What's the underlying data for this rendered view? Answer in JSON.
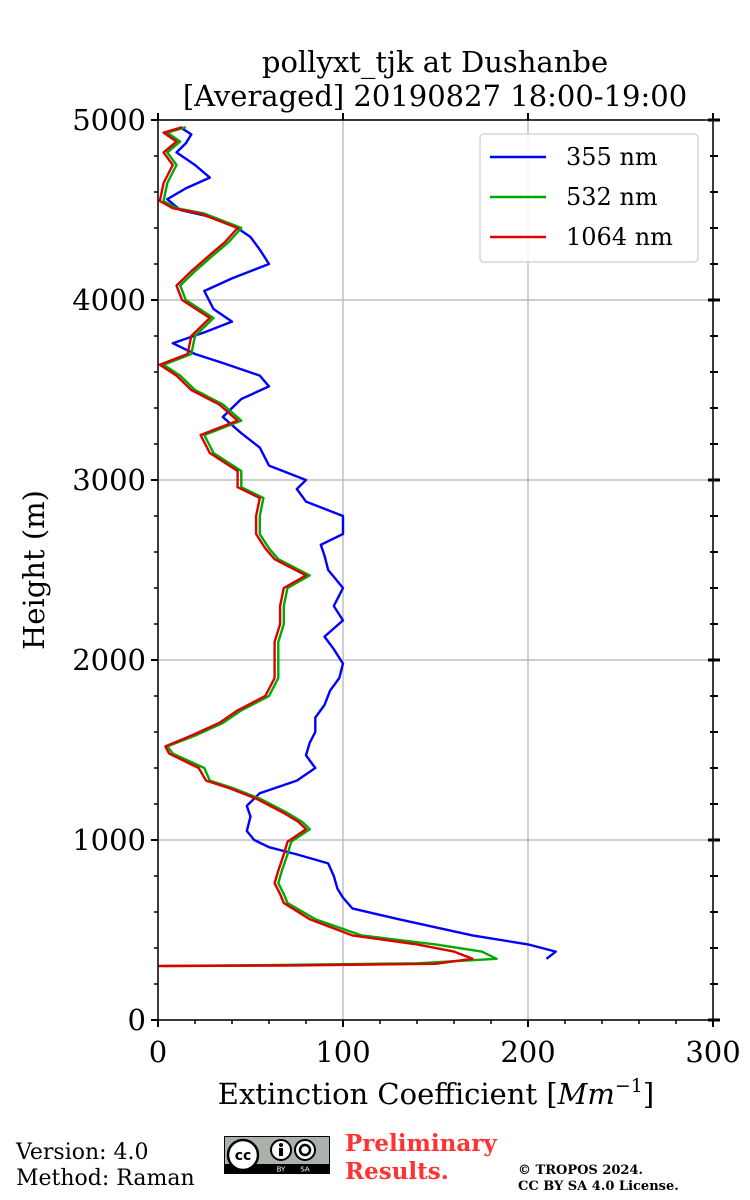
{
  "chart_data": {
    "type": "line",
    "title": [
      "pollyxt_tjk at Dushanbe",
      "[Averaged] 20190827 18:00-19:00"
    ],
    "xlabel": "Extinction Coefficient [",
    "xlabel_unit": "Mm",
    "xlabel_exp": "−1",
    "xlabel_close": "]",
    "ylabel": "Height (m)",
    "xlim": [
      0,
      300
    ],
    "ylim": [
      0,
      5000
    ],
    "xticks": [
      0,
      100,
      200,
      300
    ],
    "yticks": [
      0,
      1000,
      2000,
      3000,
      4000,
      5000
    ],
    "grid": true,
    "legend_position": "top-right",
    "series": [
      {
        "name": "355 nm",
        "color": "#0000ff",
        "points": [
          [
            210,
            340
          ],
          [
            215,
            380
          ],
          [
            200,
            420
          ],
          [
            170,
            470
          ],
          [
            130,
            560
          ],
          [
            105,
            620
          ],
          [
            100,
            680
          ],
          [
            97,
            730
          ],
          [
            95,
            800
          ],
          [
            92,
            870
          ],
          [
            75,
            920
          ],
          [
            60,
            960
          ],
          [
            52,
            1000
          ],
          [
            48,
            1050
          ],
          [
            50,
            1130
          ],
          [
            48,
            1190
          ],
          [
            55,
            1260
          ],
          [
            75,
            1330
          ],
          [
            85,
            1400
          ],
          [
            80,
            1470
          ],
          [
            82,
            1540
          ],
          [
            85,
            1600
          ],
          [
            85,
            1680
          ],
          [
            90,
            1750
          ],
          [
            93,
            1830
          ],
          [
            98,
            1900
          ],
          [
            100,
            1980
          ],
          [
            95,
            2060
          ],
          [
            90,
            2130
          ],
          [
            100,
            2220
          ],
          [
            95,
            2300
          ],
          [
            100,
            2400
          ],
          [
            92,
            2500
          ],
          [
            90,
            2580
          ],
          [
            88,
            2640
          ],
          [
            100,
            2700
          ],
          [
            100,
            2800
          ],
          [
            80,
            2880
          ],
          [
            75,
            2950
          ],
          [
            80,
            3000
          ],
          [
            60,
            3080
          ],
          [
            55,
            3180
          ],
          [
            45,
            3260
          ],
          [
            35,
            3350
          ],
          [
            45,
            3450
          ],
          [
            60,
            3520
          ],
          [
            55,
            3580
          ],
          [
            35,
            3650
          ],
          [
            20,
            3700
          ],
          [
            8,
            3760
          ],
          [
            25,
            3820
          ],
          [
            40,
            3880
          ],
          [
            30,
            3950
          ],
          [
            25,
            4050
          ],
          [
            40,
            4120
          ],
          [
            60,
            4200
          ],
          [
            55,
            4280
          ],
          [
            50,
            4350
          ],
          [
            40,
            4420
          ],
          [
            25,
            4470
          ],
          [
            12,
            4500
          ],
          [
            5,
            4560
          ],
          [
            15,
            4620
          ],
          [
            28,
            4680
          ],
          [
            20,
            4750
          ],
          [
            10,
            4820
          ],
          [
            15,
            4870
          ],
          [
            18,
            4920
          ],
          [
            12,
            4960
          ]
        ]
      },
      {
        "name": "532 nm",
        "color": "#00aa00",
        "points": [
          [
            3,
            300
          ],
          [
            60,
            305
          ],
          [
            140,
            315
          ],
          [
            183,
            340
          ],
          [
            175,
            380
          ],
          [
            150,
            420
          ],
          [
            110,
            470
          ],
          [
            85,
            560
          ],
          [
            70,
            650
          ],
          [
            68,
            700
          ],
          [
            65,
            760
          ],
          [
            67,
            830
          ],
          [
            70,
            920
          ],
          [
            72,
            990
          ],
          [
            82,
            1060
          ],
          [
            78,
            1100
          ],
          [
            70,
            1150
          ],
          [
            55,
            1230
          ],
          [
            40,
            1290
          ],
          [
            28,
            1330
          ],
          [
            25,
            1400
          ],
          [
            8,
            1480
          ],
          [
            5,
            1520
          ],
          [
            20,
            1580
          ],
          [
            35,
            1650
          ],
          [
            45,
            1720
          ],
          [
            60,
            1800
          ],
          [
            65,
            1900
          ],
          [
            65,
            2000
          ],
          [
            65,
            2100
          ],
          [
            68,
            2200
          ],
          [
            68,
            2300
          ],
          [
            70,
            2400
          ],
          [
            82,
            2470
          ],
          [
            65,
            2560
          ],
          [
            60,
            2620
          ],
          [
            55,
            2700
          ],
          [
            55,
            2800
          ],
          [
            57,
            2900
          ],
          [
            45,
            2960
          ],
          [
            45,
            3050
          ],
          [
            30,
            3150
          ],
          [
            25,
            3250
          ],
          [
            45,
            3330
          ],
          [
            35,
            3420
          ],
          [
            20,
            3500
          ],
          [
            12,
            3580
          ],
          [
            3,
            3640
          ],
          [
            18,
            3700
          ],
          [
            20,
            3800
          ],
          [
            30,
            3900
          ],
          [
            15,
            4000
          ],
          [
            12,
            4080
          ],
          [
            20,
            4160
          ],
          [
            30,
            4250
          ],
          [
            38,
            4320
          ],
          [
            45,
            4400
          ],
          [
            25,
            4480
          ],
          [
            10,
            4510
          ],
          [
            3,
            4550
          ],
          [
            5,
            4650
          ],
          [
            10,
            4750
          ],
          [
            5,
            4820
          ],
          [
            12,
            4880
          ],
          [
            5,
            4930
          ],
          [
            15,
            4960
          ]
        ]
      },
      {
        "name": "1064 nm",
        "color": "#dd0000",
        "points": [
          [
            0,
            300
          ],
          [
            70,
            303
          ],
          [
            150,
            312
          ],
          [
            170,
            340
          ],
          [
            160,
            380
          ],
          [
            140,
            420
          ],
          [
            105,
            470
          ],
          [
            82,
            560
          ],
          [
            68,
            650
          ],
          [
            66,
            700
          ],
          [
            63,
            760
          ],
          [
            65,
            830
          ],
          [
            68,
            920
          ],
          [
            70,
            990
          ],
          [
            80,
            1060
          ],
          [
            76,
            1100
          ],
          [
            68,
            1150
          ],
          [
            53,
            1230
          ],
          [
            38,
            1290
          ],
          [
            26,
            1330
          ],
          [
            22,
            1400
          ],
          [
            6,
            1480
          ],
          [
            4,
            1520
          ],
          [
            18,
            1580
          ],
          [
            33,
            1650
          ],
          [
            43,
            1720
          ],
          [
            58,
            1800
          ],
          [
            63,
            1900
          ],
          [
            63,
            2000
          ],
          [
            63,
            2100
          ],
          [
            66,
            2200
          ],
          [
            66,
            2300
          ],
          [
            68,
            2400
          ],
          [
            80,
            2470
          ],
          [
            63,
            2560
          ],
          [
            58,
            2620
          ],
          [
            53,
            2700
          ],
          [
            53,
            2800
          ],
          [
            55,
            2900
          ],
          [
            43,
            2960
          ],
          [
            43,
            3050
          ],
          [
            28,
            3150
          ],
          [
            23,
            3250
          ],
          [
            43,
            3330
          ],
          [
            33,
            3420
          ],
          [
            18,
            3500
          ],
          [
            10,
            3580
          ],
          [
            1,
            3640
          ],
          [
            16,
            3700
          ],
          [
            18,
            3800
          ],
          [
            28,
            3900
          ],
          [
            13,
            4000
          ],
          [
            10,
            4080
          ],
          [
            18,
            4160
          ],
          [
            28,
            4250
          ],
          [
            36,
            4320
          ],
          [
            43,
            4400
          ],
          [
            23,
            4480
          ],
          [
            8,
            4510
          ],
          [
            1,
            4550
          ],
          [
            3,
            4650
          ],
          [
            8,
            4750
          ],
          [
            3,
            4820
          ],
          [
            10,
            4880
          ],
          [
            3,
            4930
          ],
          [
            13,
            4960
          ]
        ]
      }
    ]
  },
  "footer": {
    "version": "Version: 4.0",
    "method": "Method: Raman",
    "preliminary_line1": "Preliminary",
    "preliminary_line2": "Results.",
    "copyright_line1": "© TROPOS 2024.",
    "copyright_line2": "CC BY SA 4.0 License.",
    "badge_text": [
      "cc",
      "BY",
      "SA"
    ]
  }
}
